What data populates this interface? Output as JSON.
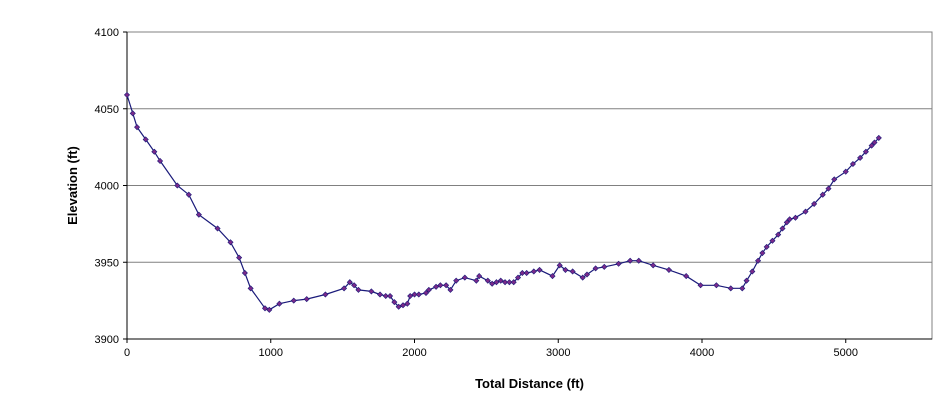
{
  "chart_data": {
    "type": "line",
    "title": "",
    "xlabel": "Total Distance (ft)",
    "ylabel": "Elevation (ft)",
    "xlim": [
      0,
      5600
    ],
    "ylim": [
      3900,
      4100
    ],
    "xticks": [
      0,
      1000,
      2000,
      3000,
      4000,
      5000
    ],
    "yticks": [
      3900,
      3950,
      4000,
      4050,
      4100
    ],
    "grid": "horizontal",
    "legend": "none",
    "series": [
      {
        "color": "#1a1a7a",
        "marker_color": "#7a2a8a",
        "x": [
          0,
          40,
          70,
          130,
          190,
          230,
          350,
          430,
          500,
          630,
          720,
          780,
          820,
          860,
          960,
          990,
          1060,
          1160,
          1250,
          1380,
          1510,
          1550,
          1580,
          1610,
          1700,
          1760,
          1800,
          1830,
          1860,
          1890,
          1920,
          1950,
          1970,
          2000,
          2030,
          2080,
          2100,
          2150,
          2180,
          2220,
          2250,
          2290,
          2350,
          2430,
          2450,
          2510,
          2540,
          2570,
          2600,
          2630,
          2660,
          2690,
          2720,
          2750,
          2780,
          2830,
          2870,
          2960,
          3010,
          3050,
          3100,
          3170,
          3200,
          3260,
          3320,
          3420,
          3500,
          3560,
          3660,
          3770,
          3890,
          3990,
          4100,
          4200,
          4280,
          4310,
          4350,
          4390,
          4420,
          4450,
          4490,
          4530,
          4560,
          4590,
          4610,
          4650,
          4720,
          4780,
          4840,
          4880,
          4920,
          5000,
          5050,
          5100,
          5140,
          5180,
          5200,
          5230
        ],
        "y": [
          4059,
          4047,
          4038,
          4030,
          4022,
          4016,
          4000,
          3994,
          3981,
          3972,
          3963,
          3953,
          3943,
          3933,
          3920,
          3919,
          3923,
          3925,
          3926,
          3929,
          3933,
          3937,
          3935,
          3932,
          3931,
          3929,
          3928,
          3928,
          3924,
          3921,
          3922,
          3923,
          3928,
          3929,
          3929,
          3930,
          3932,
          3934,
          3935,
          3935,
          3932,
          3938,
          3940,
          3938,
          3941,
          3938,
          3936,
          3937,
          3938,
          3937,
          3937,
          3937,
          3940,
          3943,
          3943,
          3944,
          3945,
          3941,
          3948,
          3945,
          3944,
          3940,
          3942,
          3946,
          3947,
          3949,
          3951,
          3951,
          3948,
          3945,
          3941,
          3935,
          3935,
          3933,
          3933,
          3938,
          3944,
          3951,
          3956,
          3960,
          3964,
          3968,
          3972,
          3976,
          3978,
          3979,
          3983,
          3988,
          3994,
          3998,
          4004,
          4009,
          4014,
          4018,
          4022,
          4026,
          4028,
          4031
        ]
      }
    ]
  }
}
